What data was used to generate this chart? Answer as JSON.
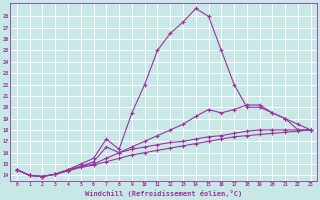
{
  "xlabel": "Windchill (Refroidissement éolien,°C)",
  "background_color": "#c8e8e8",
  "grid_color": "#ffffff",
  "line_color": "#993399",
  "xlim": [
    -0.5,
    23.5
  ],
  "ylim": [
    13.5,
    29.2
  ],
  "xticks": [
    0,
    1,
    2,
    3,
    4,
    5,
    6,
    7,
    8,
    9,
    10,
    11,
    12,
    13,
    14,
    15,
    16,
    17,
    18,
    19,
    20,
    21,
    22,
    23
  ],
  "yticks": [
    14,
    15,
    16,
    17,
    18,
    19,
    20,
    21,
    22,
    23,
    24,
    25,
    26,
    27,
    28
  ],
  "series": [
    [
      14.5,
      14.0,
      13.9,
      14.1,
      14.5,
      15.0,
      15.5,
      17.2,
      16.3,
      19.5,
      22.0,
      25.0,
      26.5,
      27.5,
      28.7,
      28.0,
      25.0,
      22.0,
      20.0,
      20.0,
      19.5,
      19.0,
      18.0,
      18.0
    ],
    [
      14.5,
      14.0,
      13.9,
      14.1,
      14.5,
      14.8,
      15.2,
      16.5,
      16.0,
      16.5,
      17.0,
      17.5,
      18.0,
      18.5,
      19.2,
      19.8,
      19.5,
      19.8,
      20.2,
      20.2,
      19.5,
      19.0,
      18.5,
      18.0
    ],
    [
      14.5,
      14.0,
      13.9,
      14.1,
      14.4,
      14.8,
      15.0,
      15.5,
      16.0,
      16.3,
      16.5,
      16.7,
      16.9,
      17.0,
      17.2,
      17.4,
      17.5,
      17.7,
      17.9,
      18.0,
      18.0,
      18.0,
      18.0,
      18.0
    ],
    [
      14.5,
      14.0,
      13.9,
      14.1,
      14.4,
      14.7,
      14.9,
      15.2,
      15.5,
      15.8,
      16.0,
      16.2,
      16.4,
      16.6,
      16.8,
      17.0,
      17.2,
      17.4,
      17.5,
      17.6,
      17.7,
      17.8,
      17.9,
      18.0
    ]
  ]
}
